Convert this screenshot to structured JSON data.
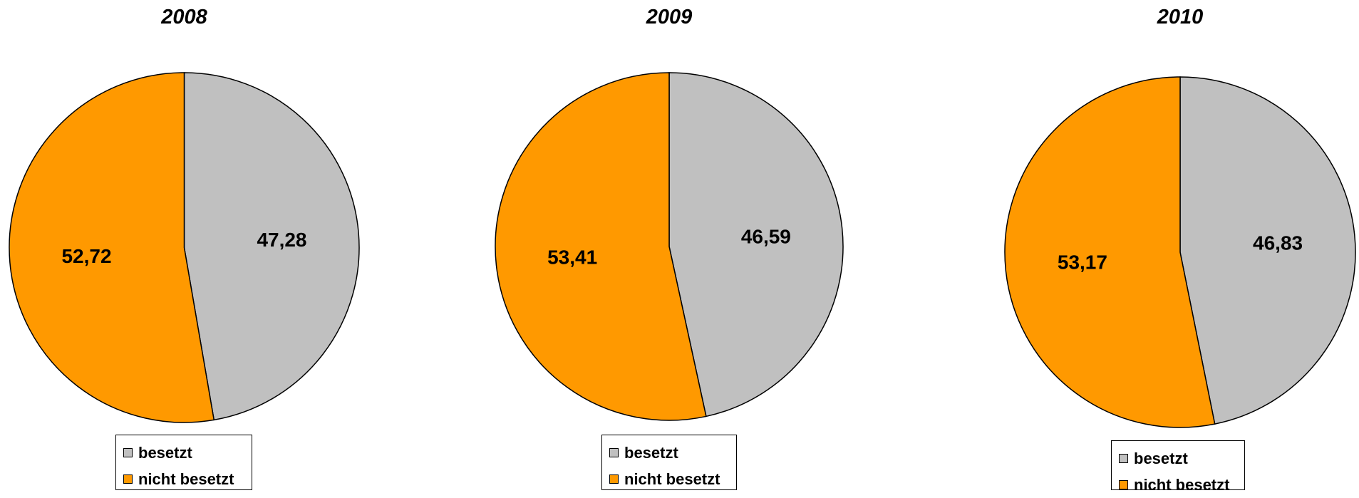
{
  "chart_data": [
    {
      "type": "pie",
      "title": "2008",
      "categories": [
        "besetzt",
        "nicht besetzt"
      ],
      "values": [
        47.28,
        52.72
      ],
      "data_labels": [
        "47,28",
        "52,72"
      ],
      "colors": [
        "#c0c0c0",
        "#ff9900"
      ],
      "legend_position": "bottom"
    },
    {
      "type": "pie",
      "title": "2009",
      "categories": [
        "besetzt",
        "nicht besetzt"
      ],
      "values": [
        46.59,
        53.41
      ],
      "data_labels": [
        "46,59",
        "53,41"
      ],
      "colors": [
        "#c0c0c0",
        "#ff9900"
      ],
      "legend_position": "bottom"
    },
    {
      "type": "pie",
      "title": "2010",
      "categories": [
        "besetzt",
        "nicht besetzt"
      ],
      "values": [
        46.83,
        53.17
      ],
      "data_labels": [
        "46,83",
        "53,17"
      ],
      "colors": [
        "#c0c0c0",
        "#ff9900"
      ],
      "legend_position": "bottom"
    }
  ]
}
